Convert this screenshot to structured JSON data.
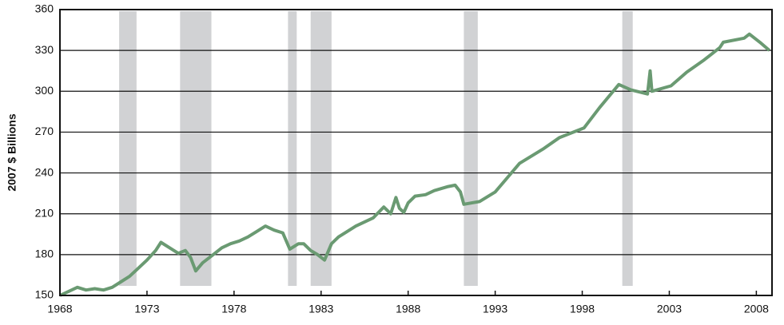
{
  "chart_data": {
    "type": "line",
    "ylabel": "2007 $ Billions",
    "xlim": [
      1968,
      2008.9
    ],
    "ylim": [
      150,
      360
    ],
    "xticks": [
      1968,
      1973,
      1978,
      1983,
      1988,
      1993,
      1998,
      2003,
      2008
    ],
    "yticks": [
      150,
      180,
      210,
      240,
      270,
      300,
      330,
      360
    ],
    "grid": true,
    "recessions": [
      [
        1971.4,
        1972.4
      ],
      [
        1974.9,
        1976.7
      ],
      [
        1981.1,
        1981.6
      ],
      [
        1982.4,
        1983.6
      ],
      [
        1991.2,
        1992.0
      ],
      [
        2000.3,
        2000.9
      ]
    ],
    "recession_color": "#d1d2d4",
    "series": [
      {
        "color": "#6a9a72",
        "x": [
          1968.0,
          1968.5,
          1969.0,
          1969.5,
          1970.0,
          1970.5,
          1971.0,
          1971.5,
          1972.0,
          1972.5,
          1973.0,
          1973.5,
          1973.8,
          1974.3,
          1974.8,
          1975.2,
          1975.5,
          1975.8,
          1976.2,
          1976.8,
          1977.3,
          1977.8,
          1978.3,
          1978.8,
          1979.3,
          1979.8,
          1980.3,
          1980.8,
          1981.2,
          1981.7,
          1982.0,
          1982.4,
          1982.8,
          1983.2,
          1983.6,
          1984.0,
          1984.5,
          1985.0,
          1985.5,
          1986.0,
          1986.6,
          1987.0,
          1987.3,
          1987.5,
          1987.75,
          1988.0,
          1988.4,
          1989.0,
          1989.5,
          1990.3,
          1990.7,
          1991.0,
          1991.2,
          1992.1,
          1993.0,
          1994.4,
          1995.8,
          1996.7,
          1998.1,
          1999.0,
          2000.1,
          2000.8,
          2001.75,
          2001.9,
          2002.0,
          2003.1,
          2004.0,
          2005.0,
          2005.9,
          2006.1,
          2007.3,
          2007.6,
          2008.2,
          2008.75
        ],
        "values": [
          150,
          153,
          156,
          154,
          155,
          154,
          156,
          160,
          164,
          170,
          176,
          183,
          189,
          185,
          181,
          183,
          178,
          168,
          174,
          180,
          185,
          188,
          190,
          193,
          197,
          201,
          198,
          196,
          184,
          188,
          188,
          183,
          180,
          176,
          188,
          193,
          197,
          201,
          204,
          207,
          215,
          210,
          222,
          214,
          211,
          218,
          223,
          224,
          227,
          230,
          231,
          226,
          217,
          219,
          226,
          247,
          258,
          266,
          273,
          288,
          305,
          301,
          298,
          315,
          300,
          304,
          314,
          323,
          332,
          336,
          339,
          342,
          336,
          330
        ]
      }
    ]
  }
}
